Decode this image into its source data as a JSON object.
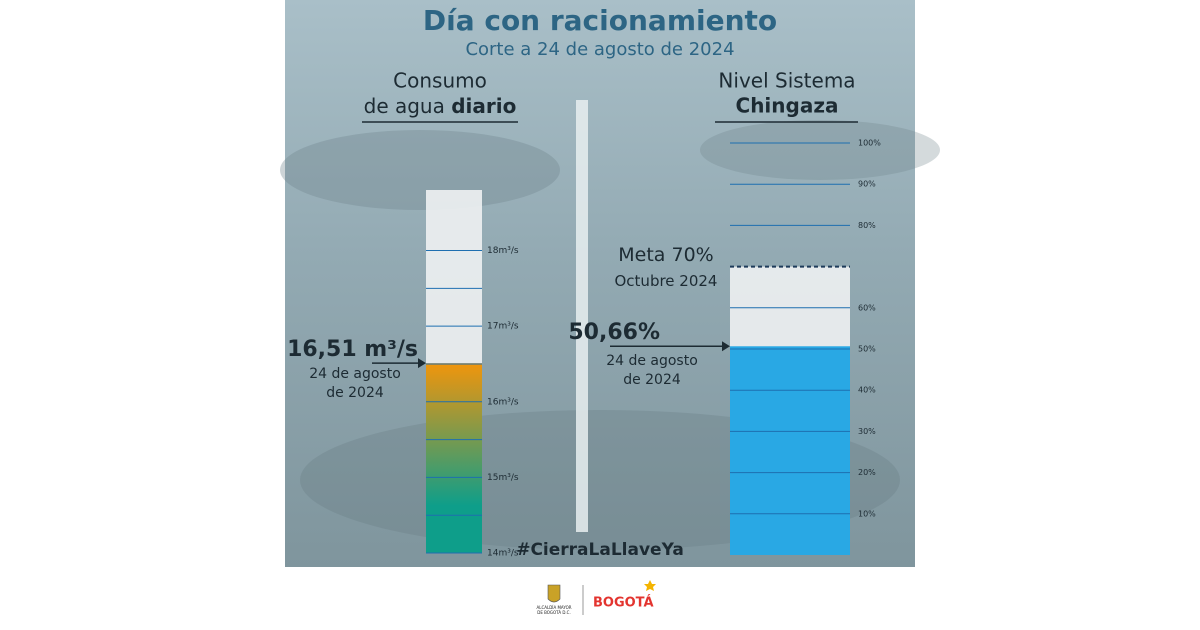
{
  "header": {
    "title": "Día con racionamiento",
    "subtitle": "Corte a 24 de agosto de 2024"
  },
  "chart_data": [
    {
      "type": "bar",
      "title_parts": [
        "Consumo",
        "de agua",
        "diario"
      ],
      "values": [
        16.51
      ],
      "value_labels": [
        "16,51 m³/s"
      ],
      "annotation": [
        "24 de agosto",
        "de 2024"
      ],
      "gradient": [
        "#f0950c",
        "#0e9e8a"
      ],
      "ylim": [
        14,
        18.8
      ],
      "yticks": [
        {
          "value": 14,
          "label": "14m³/s"
        },
        {
          "value": 15,
          "label": "15m³/s"
        },
        {
          "value": 16,
          "label": "16m³/s"
        },
        {
          "value": 17,
          "label": "17m³/s"
        },
        {
          "value": 18,
          "label": "18m³/s"
        }
      ],
      "minor_yticks": [
        14.5,
        15.5,
        16.5,
        17.5
      ]
    },
    {
      "type": "bar",
      "title_parts": [
        "Nivel Sistema",
        "Chingaza"
      ],
      "values": [
        50.66
      ],
      "value_labels": [
        "50,66%"
      ],
      "annotation": [
        "24 de agosto",
        "de 2024"
      ],
      "color": "#29a8e4",
      "target": {
        "value": 70,
        "labels": [
          "Meta 70%",
          "Octubre 2024"
        ]
      },
      "ylim": [
        0,
        100
      ],
      "yticks": [
        {
          "value": 10,
          "label": "10%"
        },
        {
          "value": 20,
          "label": "20%"
        },
        {
          "value": 30,
          "label": "30%"
        },
        {
          "value": 40,
          "label": "40%"
        },
        {
          "value": 50,
          "label": "50%"
        },
        {
          "value": 60,
          "label": "60%"
        },
        {
          "value": 80,
          "label": "80%"
        },
        {
          "value": 90,
          "label": "90%"
        },
        {
          "value": 100,
          "label": "100%"
        }
      ]
    }
  ],
  "hashtag": "#CierraLaLlaveYa",
  "footer": {
    "entity": [
      "ALCALDÍA MAYOR",
      "DE BOGOTÁ D.C."
    ],
    "brand": "BOGOTÁ"
  }
}
